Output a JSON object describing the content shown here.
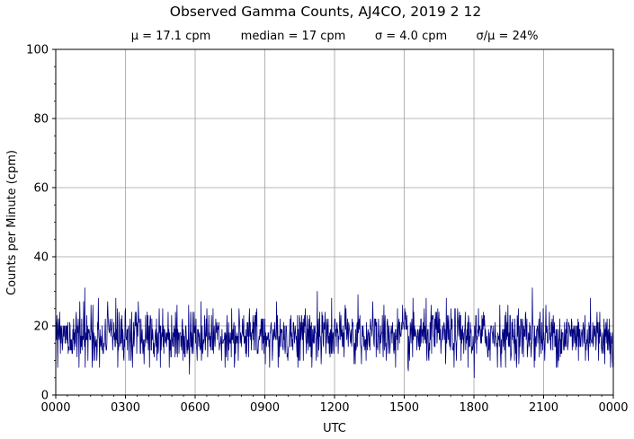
{
  "chart_data": {
    "type": "line",
    "title": "Observed Gamma Counts, AJ4CO, 2019 2 12",
    "subtitle_stats": [
      "μ = 17.1 cpm",
      "median = 17 cpm",
      "σ = 4.0 cpm",
      "σ/μ = 24%"
    ],
    "xlabel": "UTC",
    "ylabel": "Counts per Minute (cpm)",
    "x_tick_labels": [
      "0000",
      "0300",
      "0600",
      "0900",
      "1200",
      "1500",
      "1800",
      "2100",
      "0000"
    ],
    "x_unit": "minutes since 0000 UTC",
    "xlim": [
      0,
      1440
    ],
    "y_ticks": [
      0,
      20,
      40,
      60,
      80,
      100
    ],
    "ylim": [
      0,
      100
    ],
    "grid": true,
    "series": [
      {
        "color": "#000080",
        "sampling": "one value per minute, 1440 points",
        "stats": {
          "mean": 17.1,
          "median": 17,
          "std": 4.0
        },
        "approx_range": [
          5,
          31
        ],
        "notable_peaks": [
          {
            "time": "0115",
            "value": 31
          },
          {
            "time": "1115",
            "value": 30
          },
          {
            "time": "1300",
            "value": 29
          },
          {
            "time": "2030",
            "value": 31
          },
          {
            "time": "2300",
            "value": 28
          }
        ],
        "notable_dips": [
          {
            "time": "0545",
            "value": 6
          },
          {
            "time": "1800",
            "value": 5
          },
          {
            "time": "1510",
            "value": 7
          }
        ]
      }
    ]
  }
}
